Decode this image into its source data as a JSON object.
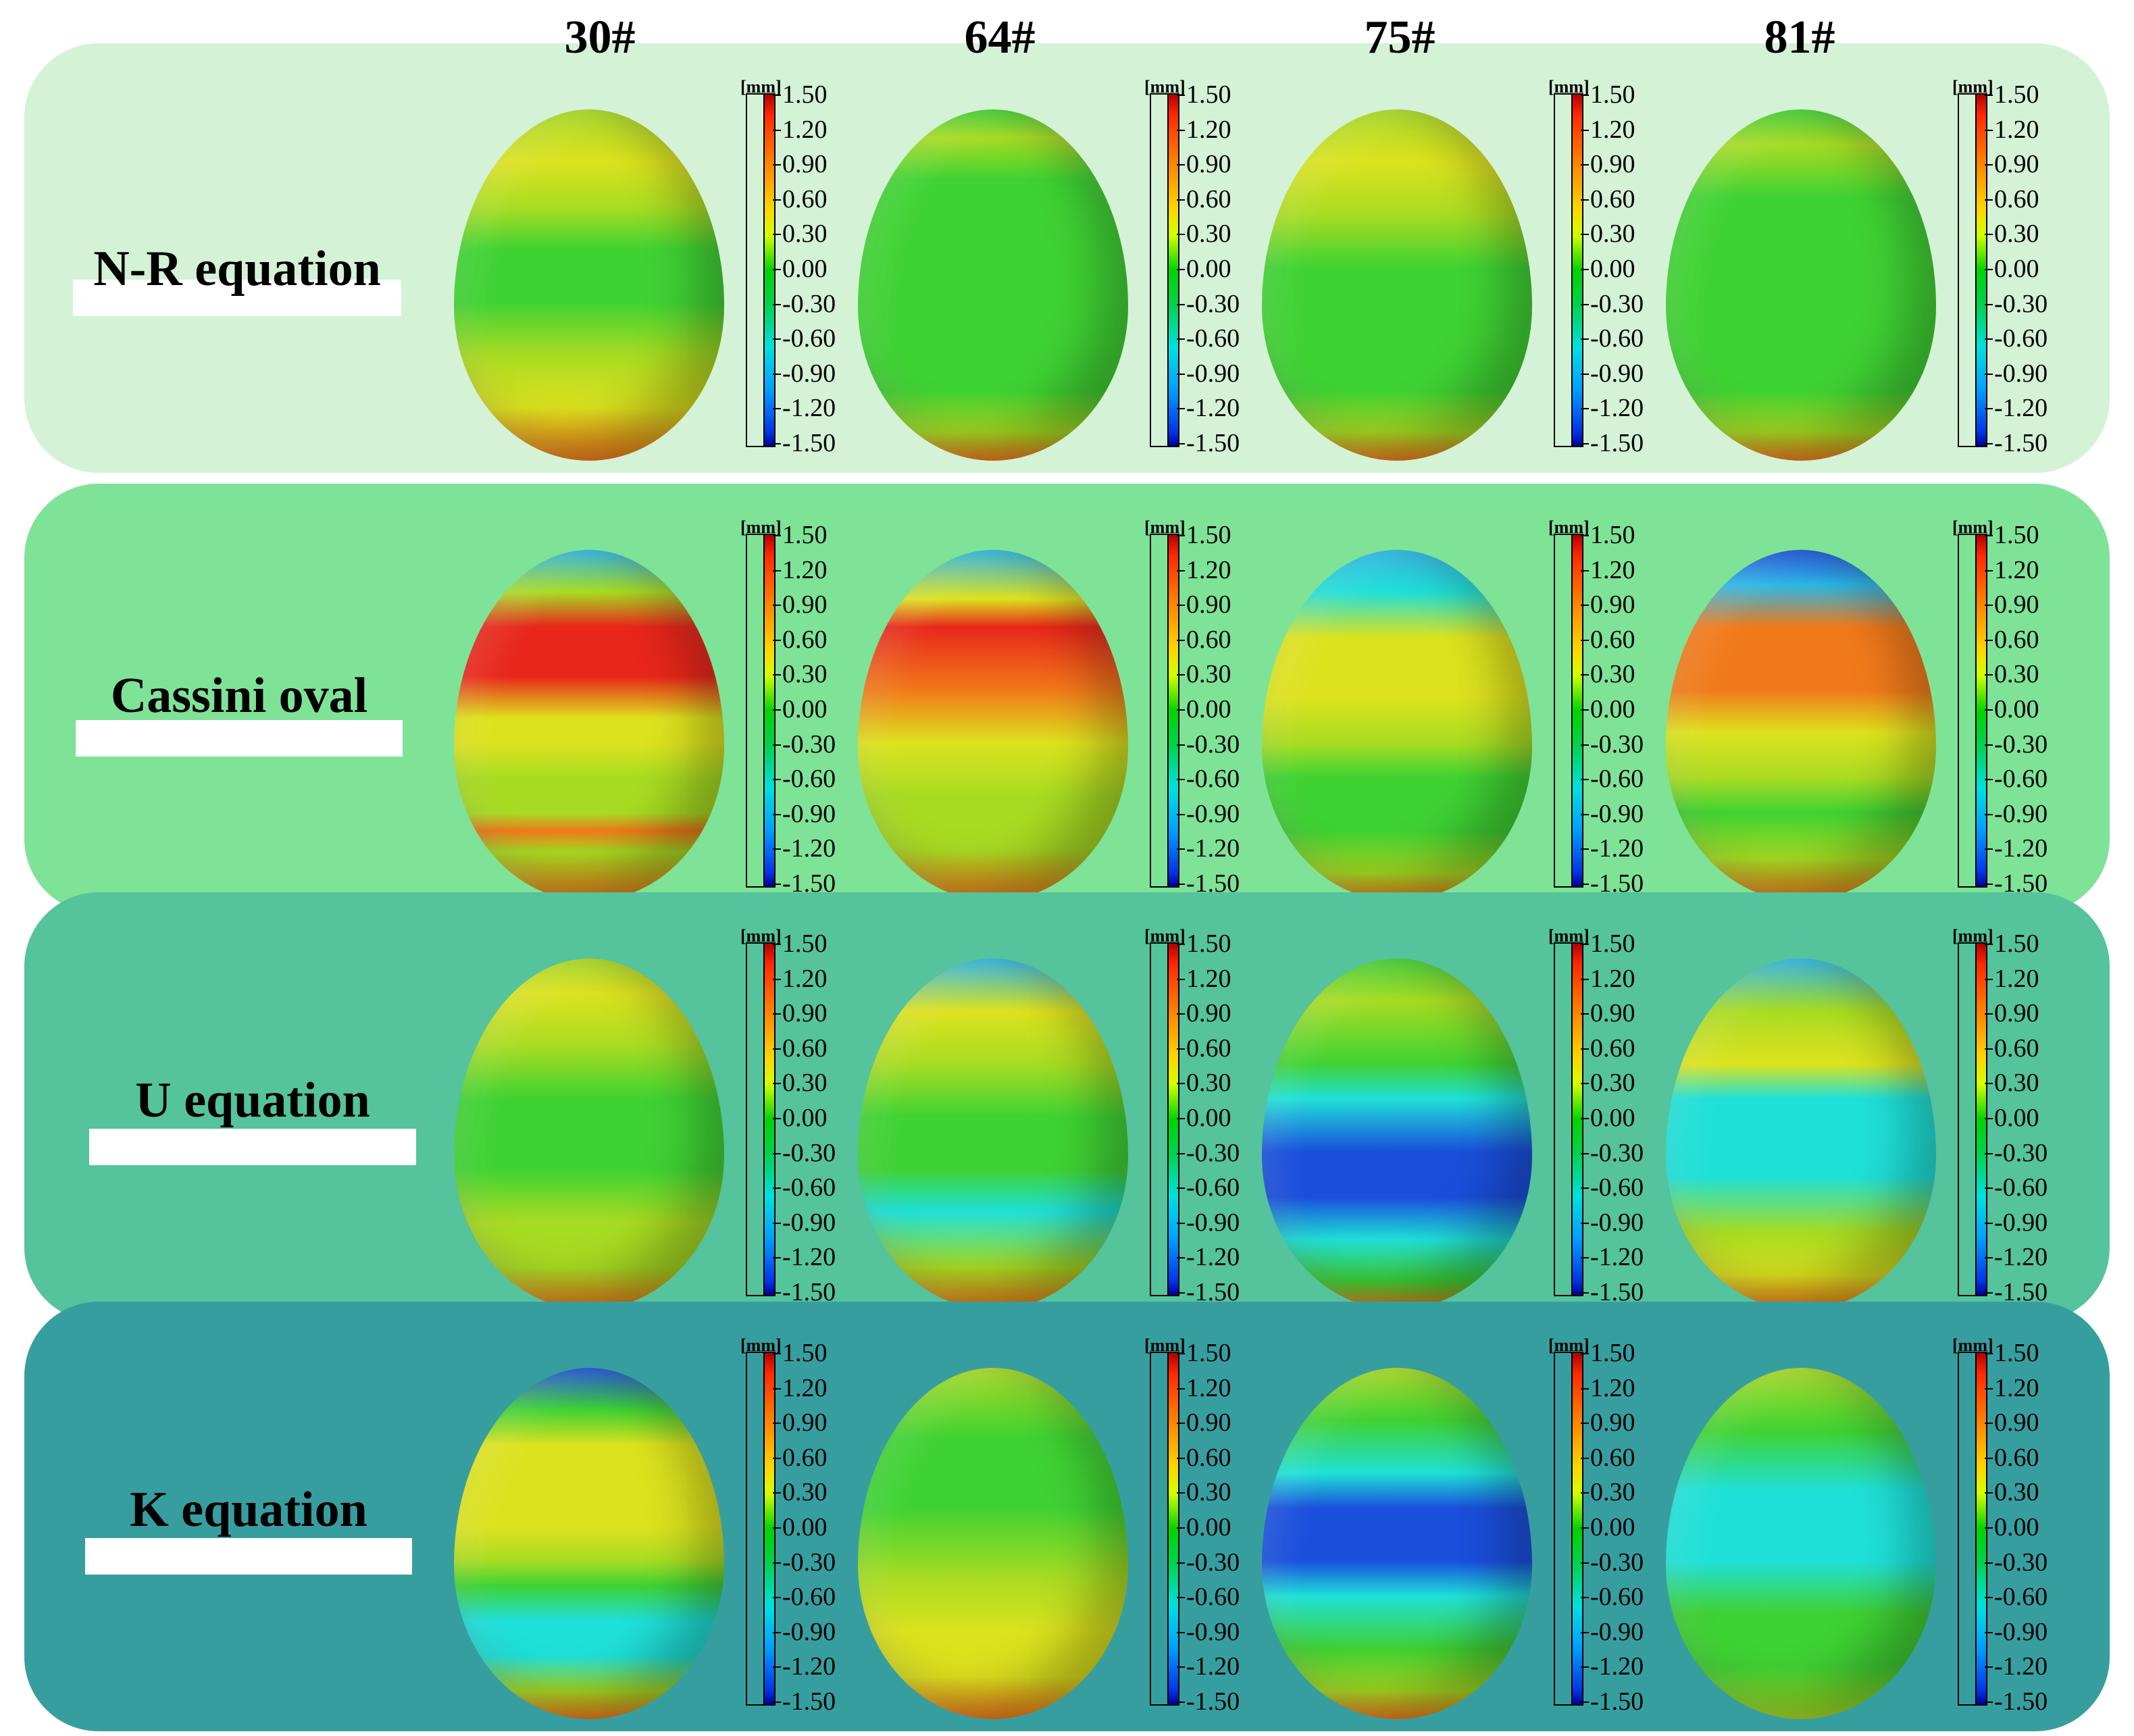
{
  "columns": [
    "30#",
    "64#",
    "75#",
    "81#"
  ],
  "rows": [
    {
      "label": "N-R equation",
      "band_color": "#d4f2d5"
    },
    {
      "label": "Cassini oval",
      "band_color": "#7ee397"
    },
    {
      "label": "U equation",
      "band_color": "#55c39c"
    },
    {
      "label": "K equation",
      "band_color": "#379ea0"
    }
  ],
  "scale": {
    "unit": "[mm]",
    "ticks": [
      "1.50",
      "1.20",
      "0.90",
      "0.60",
      "0.30",
      "0.00",
      "-0.30",
      "-0.60",
      "-0.90",
      "-1.20",
      "-1.50"
    ]
  },
  "colors": {
    "red": "#e8261a",
    "orange": "#f07a1a",
    "yellow": "#dde21e",
    "lime": "#a8dc22",
    "green": "#3fd233",
    "cyan": "#1fe0d8",
    "lightblue": "#2ab7e6",
    "blue": "#1a4fdc"
  },
  "eggs": [
    [
      "lime:0,yellow:15,lime:28,green:40,green:55,lime:70,yellow:85,orange:100",
      "green:0,lime:8,green:20,green:80,lime:92,orange:100",
      "lime:0,yellow:15,lime:30,green:45,green:80,lime:92,orange:100",
      "green:0,lime:10,green:25,green:80,lime:92,orange:100"
    ],
    [
      "lightblue:0,lime:12,red:22,red:36,yellow:48,yellow:55,lime:65,lime:75,orange:80,lime:86,orange:100",
      "lightblue:0,yellow:14,red:22,orange:40,yellow:55,lime:70,lime:85,orange:100",
      "lightblue:0,cyan:12,yellow:25,yellow:42,lime:55,green:65,green:80,lime:92,orange:100",
      "blue:0,lightblue:10,orange:22,orange:40,yellow:52,lime:65,green:75,lime:88,orange:100"
    ],
    [
      "lime:0,yellow:10,lime:25,green:40,green:60,lime:75,lime:88,orange:100",
      "lightblue:0,yellow:15,lime:30,green:45,green:60,cyan:72,lime:88,orange:100",
      "green:0,lime:12,green:30,cyan:40,blue:55,blue:68,cyan:80,green:92,orange:100",
      "lightblue:0,lime:15,yellow:30,cyan:40,cyan:62,lime:78,yellow:90,orange:100"
    ],
    [
      "blue:0,green:12,yellow:22,yellow:45,lime:55,green:62,cyan:72,cyan:82,lime:92,orange:100",
      "lime:0,green:20,green:40,lime:60,yellow:75,yellow:88,orange:100",
      "lime:0,green:15,cyan:30,blue:40,blue:55,cyan:65,green:80,lime:92,orange:100",
      "lime:0,green:18,cyan:35,cyan:55,green:70,green:85,lime:100"
    ]
  ]
}
